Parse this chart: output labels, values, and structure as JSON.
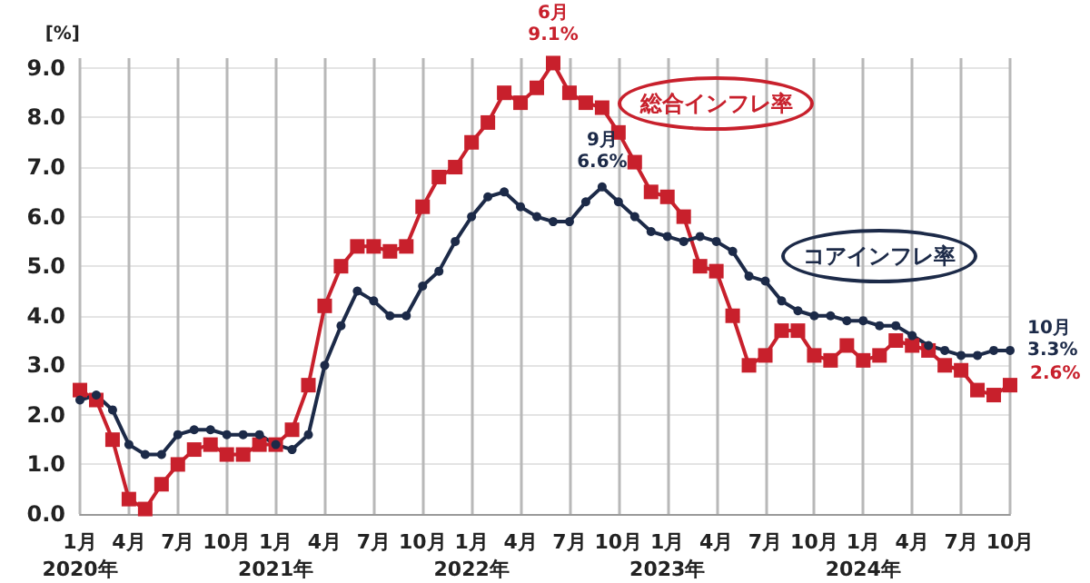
{
  "chart_data": {
    "type": "line",
    "ylabel": "[%]",
    "categories": [
      "1月\n2020年",
      null,
      null,
      "4月",
      null,
      null,
      "7月",
      null,
      null,
      "10月",
      null,
      null,
      "1月\n2021年",
      null,
      null,
      "4月",
      null,
      null,
      "7月",
      null,
      null,
      "10月",
      null,
      null,
      "1月\n2022年",
      null,
      null,
      "4月",
      null,
      null,
      "7月",
      null,
      null,
      "10月",
      null,
      null,
      "1月\n2023年",
      null,
      null,
      "4月",
      null,
      null,
      "7月",
      null,
      null,
      "10月",
      null,
      null,
      "1月\n2024年",
      null,
      null,
      "4月",
      null,
      null,
      "7月",
      null,
      null,
      "10月"
    ],
    "series": [
      {
        "name": "総合インフレ率",
        "color": "#c8202c",
        "marker": "square",
        "values": [
          2.5,
          2.3,
          1.5,
          0.3,
          0.1,
          0.6,
          1.0,
          1.3,
          1.4,
          1.2,
          1.2,
          1.4,
          1.4,
          1.7,
          2.6,
          4.2,
          5.0,
          5.4,
          5.4,
          5.3,
          5.4,
          6.2,
          6.8,
          7.0,
          7.5,
          7.9,
          8.5,
          8.3,
          8.6,
          9.1,
          8.5,
          8.3,
          8.2,
          7.7,
          7.1,
          6.5,
          6.4,
          6.0,
          5.0,
          4.9,
          4.0,
          3.0,
          3.2,
          3.7,
          3.7,
          3.2,
          3.1,
          3.4,
          3.1,
          3.2,
          3.5,
          3.4,
          3.3,
          3.0,
          2.9,
          2.5,
          2.4,
          2.6
        ],
        "value_labels": [
          null,
          null,
          null,
          null,
          null,
          null,
          null,
          null,
          null,
          null,
          null,
          null,
          null,
          null,
          null,
          null,
          null,
          null,
          null,
          null,
          null,
          null,
          null,
          null,
          null,
          null,
          null,
          null,
          null,
          "6月\n9.1%",
          null,
          null,
          null,
          null,
          null,
          null,
          null,
          null,
          null,
          null,
          null,
          null,
          null,
          null,
          null,
          null,
          null,
          null,
          null,
          null,
          null,
          null,
          null,
          null,
          null,
          null,
          null,
          "2.6%"
        ]
      },
      {
        "name": "コアインフレ率",
        "color": "#1c2a48",
        "marker": "circle",
        "values": [
          2.3,
          2.4,
          2.1,
          1.4,
          1.2,
          1.2,
          1.6,
          1.7,
          1.7,
          1.6,
          1.6,
          1.6,
          1.4,
          1.3,
          1.6,
          3.0,
          3.8,
          4.5,
          4.3,
          4.0,
          4.0,
          4.6,
          4.9,
          5.5,
          6.0,
          6.4,
          6.5,
          6.2,
          6.0,
          5.9,
          5.9,
          6.3,
          6.6,
          6.3,
          6.0,
          5.7,
          5.6,
          5.5,
          5.6,
          5.5,
          5.3,
          4.8,
          4.7,
          4.3,
          4.1,
          4.0,
          4.0,
          3.9,
          3.9,
          3.8,
          3.8,
          3.6,
          3.4,
          3.3,
          3.2,
          3.2,
          3.3,
          3.3
        ],
        "value_labels": [
          null,
          null,
          null,
          null,
          null,
          null,
          null,
          null,
          null,
          null,
          null,
          null,
          null,
          null,
          null,
          null,
          null,
          null,
          null,
          null,
          null,
          null,
          null,
          null,
          null,
          null,
          null,
          null,
          null,
          null,
          null,
          null,
          "9月\n6.6%",
          null,
          null,
          null,
          null,
          null,
          null,
          null,
          null,
          null,
          null,
          null,
          null,
          null,
          null,
          null,
          null,
          null,
          null,
          null,
          null,
          null,
          null,
          null,
          null,
          "10月\n3.3%"
        ]
      }
    ],
    "ylim": [
      0,
      9.2
    ],
    "yticks": [
      {
        "value": 0,
        "label": "0.0"
      },
      {
        "value": 1,
        "label": "1.0"
      },
      {
        "value": 2,
        "label": "2.0"
      },
      {
        "value": 3,
        "label": "3.0"
      },
      {
        "value": 4,
        "label": "4.0"
      },
      {
        "value": 5,
        "label": "5.0"
      },
      {
        "value": 6,
        "label": "6.0"
      },
      {
        "value": 7,
        "label": "7.0"
      },
      {
        "value": 8,
        "label": "8.0"
      },
      {
        "value": 9,
        "label": "9.0"
      }
    ],
    "grid": true,
    "legend": false
  }
}
